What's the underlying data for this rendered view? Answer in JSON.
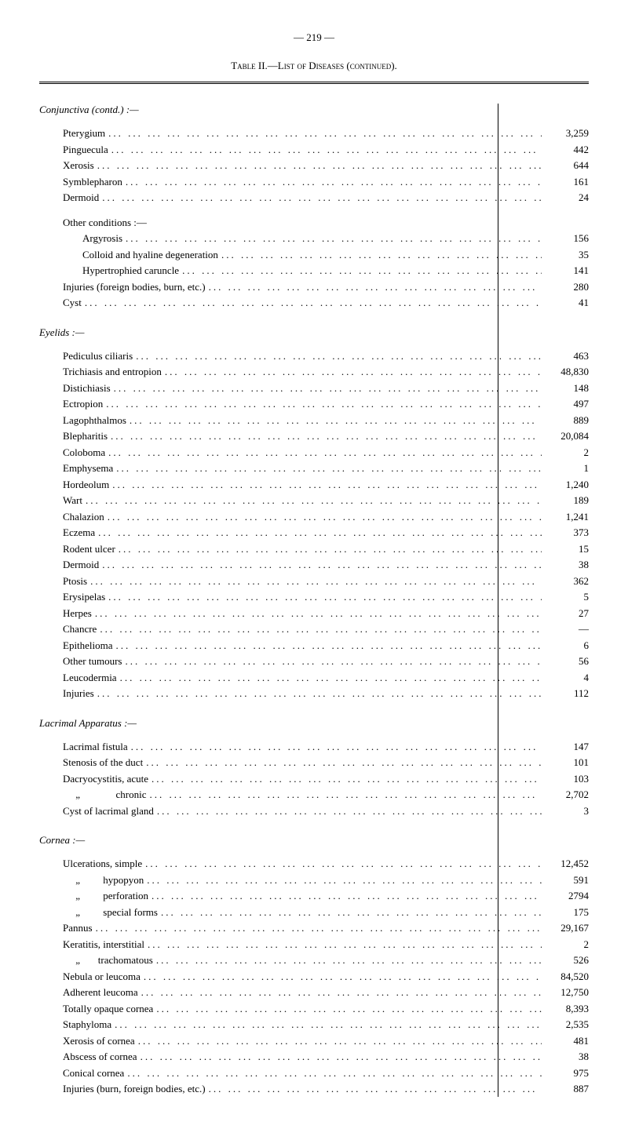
{
  "pageNumber": "— 219 —",
  "tableTitle": "Table II.—List of Diseases (continued).",
  "sections": [
    {
      "title": "Conjunctiva (contd.) :—",
      "items": [
        {
          "label": "Pterygium",
          "value": "3,259",
          "indent": 1
        },
        {
          "label": "Pinguecula",
          "value": "442",
          "indent": 1
        },
        {
          "label": "Xerosis",
          "value": "644",
          "indent": 1
        },
        {
          "label": "Symblepharon",
          "value": "161",
          "indent": 1
        },
        {
          "label": "Dermoid",
          "value": "24",
          "indent": 1
        },
        {
          "label": "",
          "value": "",
          "indent": 1,
          "spacer": true
        },
        {
          "label": "Other conditions :—",
          "value": "",
          "indent": 1,
          "noValue": true
        },
        {
          "label": "Argyrosis",
          "value": "156",
          "indent": 2
        },
        {
          "label": "Colloid and hyaline degeneration",
          "value": "35",
          "indent": 2
        },
        {
          "label": "Hypertrophied caruncle",
          "value": "141",
          "indent": 2
        },
        {
          "label": "Injuries (foreign bodies, burn, etc.)",
          "value": "280",
          "indent": 1
        },
        {
          "label": "Cyst",
          "value": "41",
          "indent": 1
        }
      ]
    },
    {
      "title": "Eyelids :—",
      "items": [
        {
          "label": "Pediculus ciliaris",
          "value": "463",
          "indent": 1
        },
        {
          "label": "Trichiasis and entropion",
          "value": "48,830",
          "indent": 1
        },
        {
          "label": "Distichiasis",
          "value": "148",
          "indent": 1
        },
        {
          "label": "Ectropion",
          "value": "497",
          "indent": 1
        },
        {
          "label": "Lagophthalmos",
          "value": "889",
          "indent": 1
        },
        {
          "label": "Blepharitis",
          "value": "20,084",
          "indent": 1
        },
        {
          "label": "Coloboma",
          "value": "2",
          "indent": 1
        },
        {
          "label": "Emphysema",
          "value": "1",
          "indent": 1
        },
        {
          "label": "Hordeolum",
          "value": "1,240",
          "indent": 1
        },
        {
          "label": "Wart",
          "value": "189",
          "indent": 1
        },
        {
          "label": "Chalazion",
          "value": "1,241",
          "indent": 1
        },
        {
          "label": "Eczema",
          "value": "373",
          "indent": 1
        },
        {
          "label": "Rodent ulcer",
          "value": "15",
          "indent": 1
        },
        {
          "label": "Dermoid",
          "value": "38",
          "indent": 1
        },
        {
          "label": "Ptosis",
          "value": "362",
          "indent": 1
        },
        {
          "label": "Erysipelas",
          "value": "5",
          "indent": 1
        },
        {
          "label": "Herpes",
          "value": "27",
          "indent": 1
        },
        {
          "label": "Chancre",
          "value": "—",
          "indent": 1
        },
        {
          "label": "Epithelioma",
          "value": "6",
          "indent": 1
        },
        {
          "label": "Other tumours",
          "value": "56",
          "indent": 1
        },
        {
          "label": "Leucodermia",
          "value": "4",
          "indent": 1
        },
        {
          "label": "Injuries",
          "value": "112",
          "indent": 1
        }
      ]
    },
    {
      "title": "Lacrimal Apparatus :—",
      "items": [
        {
          "label": "Lacrimal fistula",
          "value": "147",
          "indent": 1
        },
        {
          "label": "Stenosis of the duct",
          "value": "101",
          "indent": 1
        },
        {
          "label": "Dacryocystitis, acute",
          "value": "103",
          "indent": 1
        },
        {
          "label": "     „              chronic",
          "value": "2,702",
          "indent": 1
        },
        {
          "label": "Cyst of lacrimal gland",
          "value": "3",
          "indent": 1
        }
      ]
    },
    {
      "title": "Cornea :—",
      "items": [
        {
          "label": "Ulcerations, simple",
          "value": "12,452",
          "indent": 1
        },
        {
          "label": "     „         hypopyon",
          "value": "591",
          "indent": 1
        },
        {
          "label": "     „         perforation",
          "value": "2794",
          "indent": 1
        },
        {
          "label": "     „         special forms",
          "value": "175",
          "indent": 1
        },
        {
          "label": "Pannus",
          "value": "29,167",
          "indent": 1
        },
        {
          "label": "Keratitis, interstitial",
          "value": "2",
          "indent": 1
        },
        {
          "label": "     „       trachomatous",
          "value": "526",
          "indent": 1
        },
        {
          "label": "Nebula or leucoma",
          "value": "84,520",
          "indent": 1
        },
        {
          "label": "Adherent leucoma",
          "value": "12,750",
          "indent": 1
        },
        {
          "label": "Totally opaque cornea",
          "value": "8,393",
          "indent": 1
        },
        {
          "label": "Staphyloma",
          "value": "2,535",
          "indent": 1
        },
        {
          "label": "Xerosis of cornea",
          "value": "481",
          "indent": 1
        },
        {
          "label": "Abscess of cornea",
          "value": "38",
          "indent": 1
        },
        {
          "label": "Conical cornea",
          "value": "975",
          "indent": 1
        },
        {
          "label": "Injuries (burn, foreign bodies, etc.)",
          "value": "887",
          "indent": 1
        }
      ]
    }
  ]
}
